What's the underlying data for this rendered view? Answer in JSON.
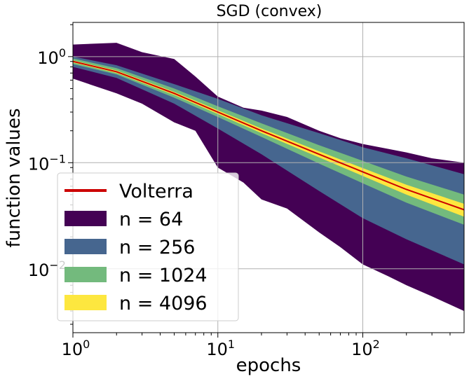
{
  "chart_data": {
    "type": "area",
    "title": "SGD (convex)",
    "xlabel": "epochs",
    "ylabel": "function values",
    "xscale": "log",
    "yscale": "log",
    "xlim": [
      1,
      500
    ],
    "ylim": [
      0.0025,
      2.1
    ],
    "grid": true,
    "legend_position": "lower-left",
    "x_ticks": [
      {
        "base": "10",
        "exp": "0",
        "value": 1
      },
      {
        "base": "10",
        "exp": "1",
        "value": 10
      },
      {
        "base": "10",
        "exp": "2",
        "value": 100
      }
    ],
    "y_ticks": [
      {
        "base": "10",
        "exp": "0",
        "value": 1
      },
      {
        "base": "10",
        "exp": "−1",
        "value": 0.1
      },
      {
        "base": "10",
        "exp": "−2",
        "value": 0.01
      }
    ],
    "line": {
      "name": "Volterra",
      "color": "#cc0000",
      "x": [
        1,
        2,
        5,
        10,
        20,
        50,
        100,
        200,
        500
      ],
      "y": [
        0.9,
        0.72,
        0.45,
        0.3,
        0.2,
        0.12,
        0.082,
        0.056,
        0.036
      ]
    },
    "bands": [
      {
        "name": "n = 64",
        "color": "#440154",
        "x": [
          1,
          2,
          3,
          5,
          7,
          10,
          15,
          20,
          30,
          50,
          70,
          100,
          150,
          200,
          300,
          500
        ],
        "lower": [
          0.62,
          0.45,
          0.36,
          0.24,
          0.2,
          0.09,
          0.065,
          0.045,
          0.037,
          0.022,
          0.016,
          0.011,
          0.0085,
          0.007,
          0.0055,
          0.004
        ],
        "upper": [
          1.3,
          1.35,
          1.1,
          0.95,
          0.65,
          0.42,
          0.33,
          0.31,
          0.27,
          0.2,
          0.17,
          0.15,
          0.135,
          0.125,
          0.11,
          0.1
        ]
      },
      {
        "name": "n = 256",
        "color": "#46668f",
        "x": [
          1,
          2,
          5,
          10,
          20,
          50,
          100,
          200,
          500
        ],
        "lower": [
          0.8,
          0.63,
          0.36,
          0.21,
          0.12,
          0.054,
          0.03,
          0.019,
          0.011
        ],
        "upper": [
          1.0,
          0.83,
          0.55,
          0.4,
          0.28,
          0.19,
          0.14,
          0.11,
          0.078
        ]
      },
      {
        "name": "n = 1024",
        "color": "#73ba7d",
        "x": [
          1,
          2,
          5,
          10,
          20,
          50,
          100,
          200,
          500
        ],
        "lower": [
          0.85,
          0.68,
          0.41,
          0.27,
          0.175,
          0.098,
          0.064,
          0.042,
          0.026
        ],
        "upper": [
          0.96,
          0.78,
          0.5,
          0.34,
          0.235,
          0.146,
          0.104,
          0.074,
          0.05
        ]
      },
      {
        "name": "n = 4096",
        "color": "#fde73f",
        "x": [
          1,
          2,
          5,
          10,
          20,
          50,
          100,
          200,
          500
        ],
        "lower": [
          0.88,
          0.7,
          0.435,
          0.288,
          0.19,
          0.112,
          0.075,
          0.05,
          0.031
        ],
        "upper": [
          0.92,
          0.74,
          0.465,
          0.312,
          0.21,
          0.128,
          0.089,
          0.062,
          0.041
        ]
      }
    ],
    "legend": [
      {
        "label": "Volterra",
        "kind": "line",
        "color": "#cc0000"
      },
      {
        "label": "n = 64",
        "kind": "patch",
        "color": "#440154"
      },
      {
        "label": "n = 256",
        "kind": "patch",
        "color": "#46668f"
      },
      {
        "label": "n = 1024",
        "kind": "patch",
        "color": "#73ba7d"
      },
      {
        "label": "n = 4096",
        "kind": "patch",
        "color": "#fde73f"
      }
    ]
  }
}
